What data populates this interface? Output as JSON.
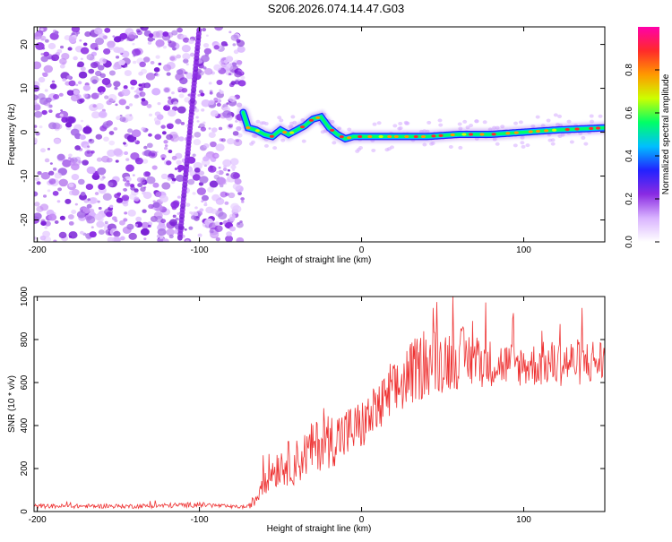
{
  "title": "S206.2026.074.14.47.G03",
  "chart_data": [
    {
      "type": "heatmap",
      "xlabel": "Height of straight line (km)",
      "ylabel": "Frequency (Hz)",
      "xlim": [
        -202,
        150
      ],
      "ylim": [
        -25,
        24
      ],
      "xticks": [
        -200,
        -100,
        0,
        100
      ],
      "yticks": [
        -20,
        -10,
        0,
        10,
        20
      ],
      "colorbar": {
        "label": "Normalized spectral amplitude",
        "range": [
          0.0,
          1.0
        ],
        "ticks": [
          "0.0",
          "0.2",
          "0.4",
          "0.6",
          "0.8"
        ],
        "colors": [
          "#ffffff",
          "#d9b3ff",
          "#8a2be2",
          "#2222ff",
          "#00bfff",
          "#00ff66",
          "#ccff00",
          "#ff9900",
          "#ff2a2a",
          "#ff00aa"
        ]
      },
      "noise_region_x": [
        -202,
        -73
      ],
      "signal_ridge": {
        "x": [
          -73,
          -70,
          -65,
          -60,
          -55,
          -50,
          -45,
          -40,
          -35,
          -30,
          -25,
          -20,
          -15,
          -10,
          -5,
          0,
          20,
          40,
          60,
          80,
          100,
          120,
          150
        ],
        "freq": [
          4.5,
          1.0,
          0.5,
          -0.5,
          -1.0,
          0.5,
          -0.5,
          0.5,
          1.5,
          3.0,
          3.5,
          1.0,
          -0.5,
          -1.5,
          -1.0,
          -1.0,
          -1.0,
          -1.0,
          -0.5,
          -0.5,
          0.0,
          0.5,
          1.0
        ]
      }
    },
    {
      "type": "line",
      "xlabel": "Height of straight line (km)",
      "ylabel": "SNR (10 * v/v)",
      "xlim": [
        -202,
        150
      ],
      "ylim": [
        0,
        1000
      ],
      "xticks": [
        -200,
        -100,
        0,
        100
      ],
      "yticks": [
        0,
        200,
        400,
        600,
        800,
        1000
      ],
      "color": "#ee3333",
      "series": [
        {
          "name": "SNR",
          "x": [
            -202,
            -180,
            -160,
            -140,
            -120,
            -100,
            -90,
            -80,
            -70,
            -65,
            -60,
            -55,
            -50,
            -40,
            -30,
            -20,
            -10,
            0,
            10,
            20,
            30,
            40,
            60,
            80,
            100,
            120,
            150
          ],
          "mean": [
            25,
            25,
            25,
            25,
            28,
            32,
            28,
            22,
            22,
            60,
            170,
            190,
            220,
            230,
            300,
            330,
            360,
            400,
            470,
            550,
            640,
            690,
            720,
            690,
            680,
            690,
            700
          ],
          "spread": [
            10,
            10,
            10,
            10,
            12,
            12,
            10,
            8,
            8,
            40,
            90,
            90,
            100,
            110,
            120,
            130,
            130,
            120,
            130,
            140,
            150,
            160,
            150,
            110,
            100,
            110,
            110
          ]
        }
      ]
    }
  ]
}
